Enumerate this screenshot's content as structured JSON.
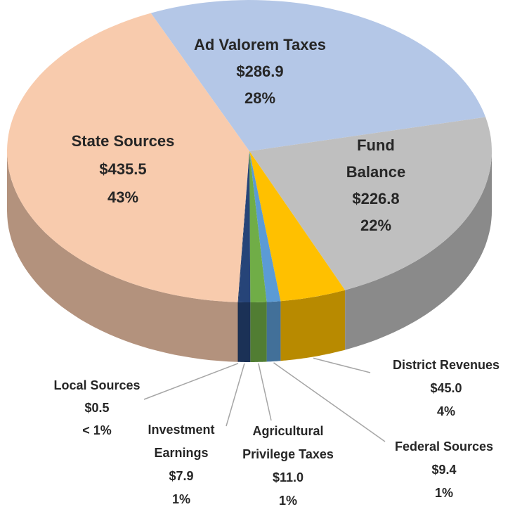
{
  "chart_data": {
    "type": "pie3d",
    "categories": [
      "Ad Valorem Taxes",
      "Fund Balance",
      "District Revenues",
      "Federal Sources",
      "Agricultural Privilege Taxes",
      "Investment Earnings",
      "Local Sources",
      "State Sources"
    ],
    "values": [
      286.9,
      226.8,
      45.0,
      9.4,
      11.0,
      7.9,
      0.5,
      435.5
    ],
    "value_labels": [
      "$286.9",
      "$226.8",
      "$45.0",
      "$9.4",
      "$11.0",
      "$7.9",
      "$0.5",
      "$435.5"
    ],
    "percent_labels": [
      "28%",
      "22%",
      "4%",
      "1%",
      "1%",
      "1%",
      "< 1%",
      "43%"
    ],
    "colors": [
      "#b4c7e7",
      "#bfbfbf",
      "#ffc000",
      "#5b9bd5",
      "#70ad47",
      "#264478",
      "#1f3864",
      "#f8cbad"
    ]
  }
}
